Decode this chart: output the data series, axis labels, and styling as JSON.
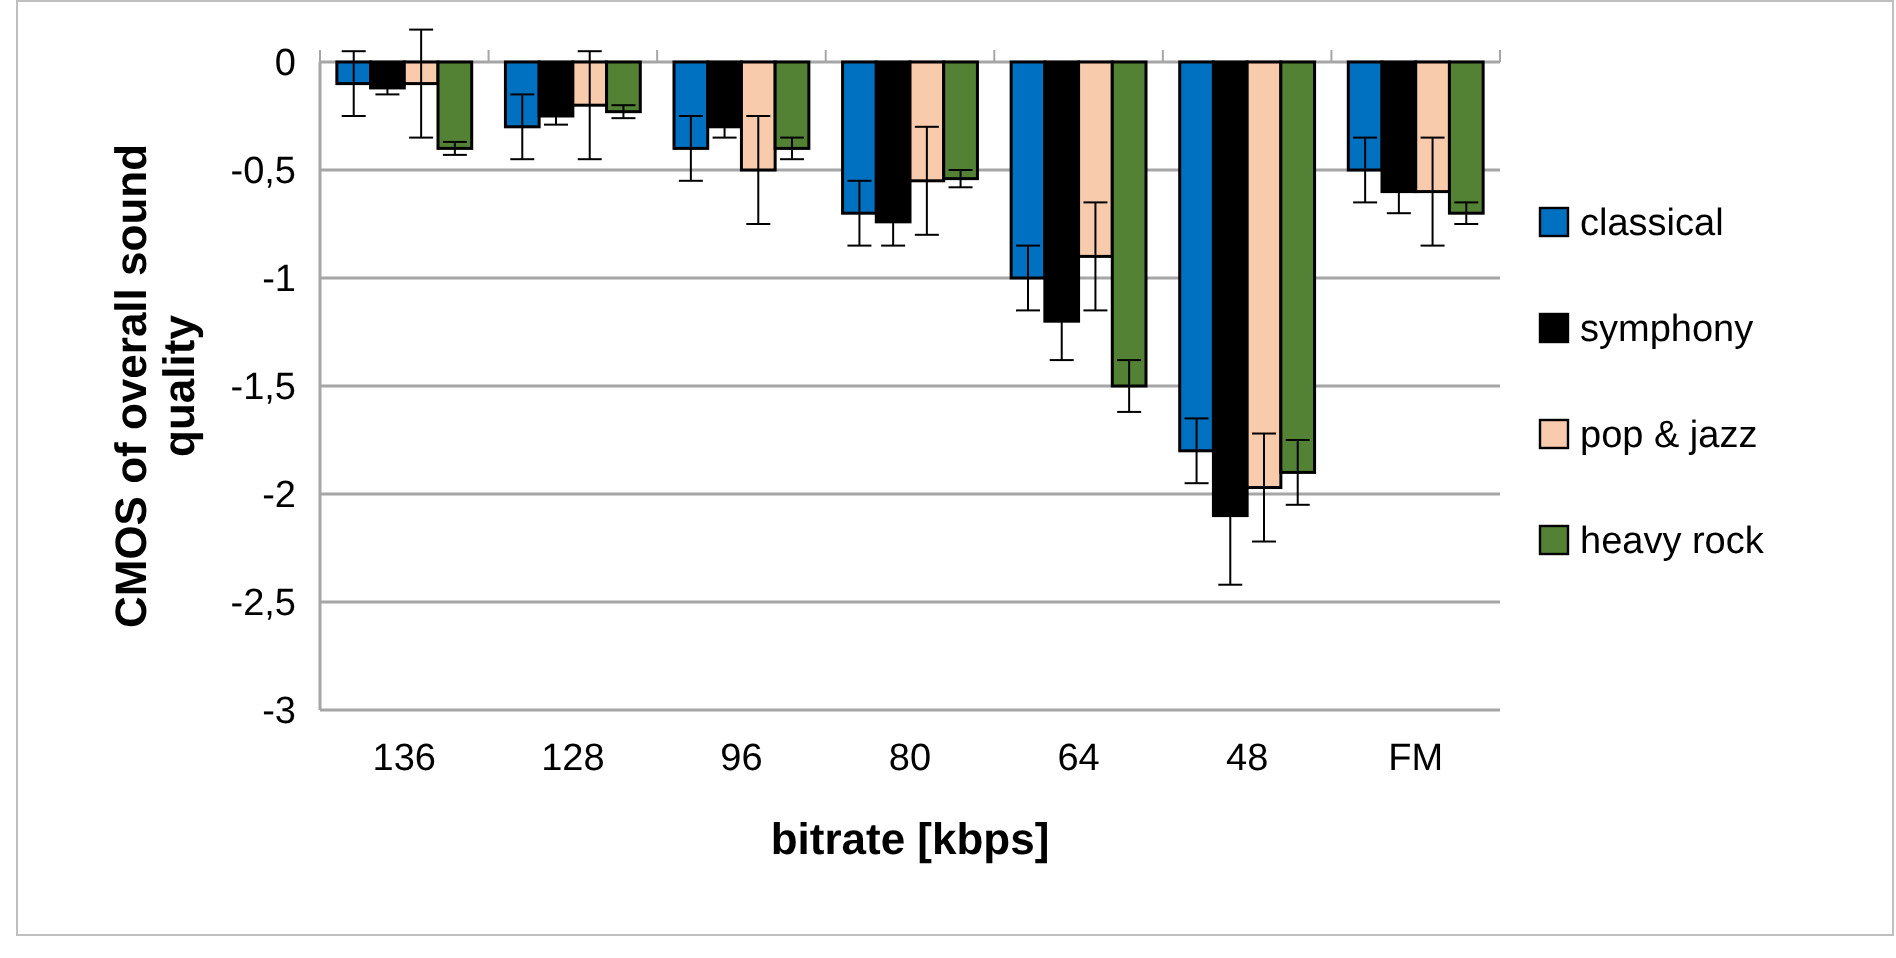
{
  "chart_data": {
    "type": "bar",
    "xlabel": "bitrate [kbps]",
    "ylabel": "CMOS of overall sound quality",
    "categories": [
      "136",
      "128",
      "96",
      "80",
      "64",
      "48",
      "FM"
    ],
    "series": [
      {
        "name": "classical",
        "color": "#0070c0",
        "values": [
          -0.1,
          -0.3,
          -0.4,
          -0.7,
          -1.0,
          -1.8,
          -0.5
        ],
        "errors": [
          0.15,
          0.15,
          0.15,
          0.15,
          0.15,
          0.15,
          0.15
        ]
      },
      {
        "name": "symphony",
        "color": "#000000",
        "values": [
          -0.12,
          -0.25,
          -0.3,
          -0.74,
          -1.2,
          -2.1,
          -0.6
        ],
        "errors": [
          0.03,
          0.04,
          0.05,
          0.11,
          0.18,
          0.32,
          0.1
        ]
      },
      {
        "name": "pop & jazz",
        "color": "#f8cbad",
        "values": [
          -0.1,
          -0.2,
          -0.5,
          -0.55,
          -0.9,
          -1.97,
          -0.6
        ],
        "errors": [
          0.25,
          0.25,
          0.25,
          0.25,
          0.25,
          0.25,
          0.25
        ]
      },
      {
        "name": "heavy rock",
        "color": "#548235",
        "values": [
          -0.4,
          -0.23,
          -0.4,
          -0.54,
          -1.5,
          -1.9,
          -0.7
        ],
        "errors": [
          0.03,
          0.03,
          0.05,
          0.04,
          0.12,
          0.15,
          0.05
        ]
      }
    ],
    "ylim": [
      -3,
      0
    ],
    "yticks": [
      {
        "value": 0,
        "label": "0"
      },
      {
        "value": -0.5,
        "label": "-0,5"
      },
      {
        "value": -1,
        "label": "-1"
      },
      {
        "value": -1.5,
        "label": "-1,5"
      },
      {
        "value": -2,
        "label": "-2"
      },
      {
        "value": -2.5,
        "label": "-2,5"
      },
      {
        "value": -3,
        "label": "-3"
      }
    ],
    "grid": "y",
    "legend": "right"
  }
}
